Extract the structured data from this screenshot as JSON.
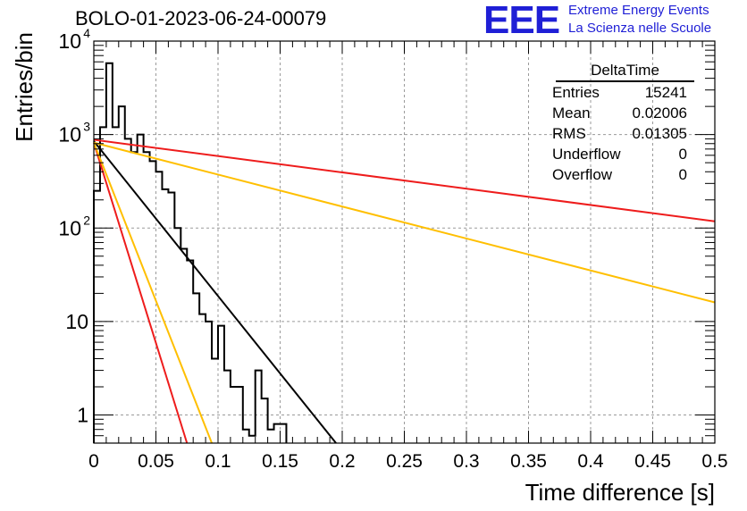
{
  "header": {
    "run_title": "BOLO-01-2023-06-24-00079",
    "logo_text": "EEE",
    "logo_line1": "Extreme Energy Events",
    "logo_line2": "La Scienza nelle Scuole",
    "logo_color": "#1f1fd6"
  },
  "stats_box": {
    "title": "DeltaTime",
    "rows": [
      {
        "label": "Entries",
        "value": "15241"
      },
      {
        "label": "Mean",
        "value": "0.02006"
      },
      {
        "label": "RMS",
        "value": "0.01305"
      },
      {
        "label": "Underflow",
        "value": "0"
      },
      {
        "label": "Overflow",
        "value": "0"
      }
    ]
  },
  "chart_data": {
    "type": "line",
    "xlabel": "Time difference [s]",
    "ylabel": "Entries/bin",
    "xlim": [
      0,
      0.5
    ],
    "ylim": [
      0.5,
      10000
    ],
    "y_scale": "log",
    "grid": true,
    "x_ticks": [
      "0",
      "0.05",
      "0.1",
      "0.15",
      "0.2",
      "0.25",
      "0.3",
      "0.35",
      "0.4",
      "0.45",
      "0.5"
    ],
    "x_tick_values": [
      0,
      0.05,
      0.1,
      0.15,
      0.2,
      0.25,
      0.3,
      0.35,
      0.4,
      0.45,
      0.5
    ],
    "y_ticks": [
      {
        "value": 1,
        "label": "1"
      },
      {
        "value": 10,
        "label": "10"
      },
      {
        "value": 100,
        "label": "10",
        "exp": "2"
      },
      {
        "value": 1000,
        "label": "10",
        "exp": "3"
      },
      {
        "value": 10000,
        "label": "10",
        "exp": "4"
      }
    ],
    "histogram": {
      "name": "DeltaTime",
      "color": "#000000",
      "bin_width": 0.005,
      "counts": [
        250,
        1200,
        5800,
        1200,
        2000,
        900,
        650,
        1000,
        650,
        520,
        400,
        260,
        240,
        100,
        60,
        45,
        20,
        12,
        10,
        4,
        9,
        3,
        2,
        2,
        0.7,
        0.6,
        3,
        1.5,
        0.7,
        0.8,
        0.8
      ]
    },
    "fits": [
      {
        "color": "#000000",
        "x": [
          0,
          0.195
        ],
        "y": [
          850,
          0.5
        ]
      },
      {
        "color": "#ee1c1c",
        "x": [
          0,
          0.5
        ],
        "y": [
          880,
          118
        ]
      },
      {
        "color": "#ffbf00",
        "x": [
          0,
          0.5
        ],
        "y": [
          820,
          16
        ]
      },
      {
        "color": "#ee1c1c",
        "x": [
          0,
          0.075
        ],
        "y": [
          820,
          0.5
        ]
      },
      {
        "color": "#ffbf00",
        "x": [
          0,
          0.095
        ],
        "y": [
          820,
          0.5
        ]
      }
    ]
  }
}
